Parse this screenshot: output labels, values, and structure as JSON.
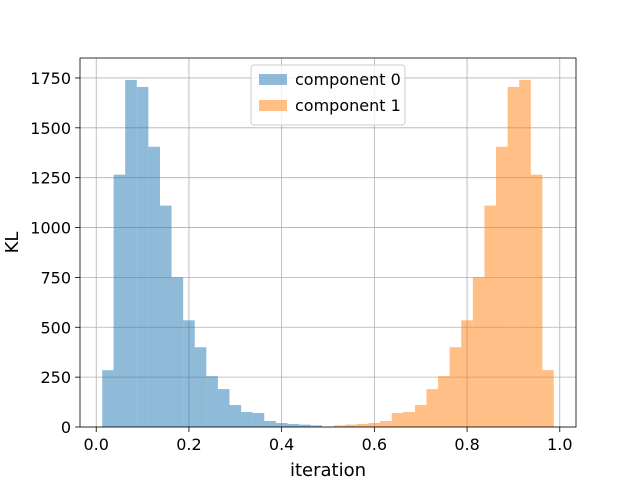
{
  "chart_data": {
    "type": "bar",
    "title": "",
    "xlabel": "iteration",
    "ylabel": "KL",
    "xlim": [
      -0.035,
      1.035
    ],
    "ylim": [
      0,
      1850
    ],
    "grid": true,
    "legend_position": "top-center",
    "x_ticks": [
      0.0,
      0.2,
      0.4,
      0.6,
      0.8,
      1.0
    ],
    "x_tick_labels": [
      "0.0",
      "0.2",
      "0.4",
      "0.6",
      "0.8",
      "1.0"
    ],
    "y_ticks": [
      0,
      250,
      500,
      750,
      1000,
      1250,
      1500,
      1750
    ],
    "y_tick_labels": [
      "0",
      "250",
      "500",
      "750",
      "1000",
      "1250",
      "1500",
      "1750"
    ],
    "series": [
      {
        "name": "component 0",
        "color": "#1f77b4",
        "opacity": 0.5,
        "bins": [
          [
            0.013,
            0.0375,
            285
          ],
          [
            0.0375,
            0.0625,
            1265
          ],
          [
            0.0625,
            0.0875,
            1740
          ],
          [
            0.0875,
            0.1125,
            1705
          ],
          [
            0.1125,
            0.1375,
            1405
          ],
          [
            0.1375,
            0.1625,
            1110
          ],
          [
            0.1625,
            0.1875,
            750
          ],
          [
            0.1875,
            0.2125,
            535
          ],
          [
            0.2125,
            0.2375,
            400
          ],
          [
            0.2375,
            0.2625,
            255
          ],
          [
            0.2625,
            0.2875,
            190
          ],
          [
            0.2875,
            0.3125,
            110
          ],
          [
            0.3125,
            0.3375,
            75
          ],
          [
            0.3375,
            0.3625,
            70
          ],
          [
            0.3625,
            0.3875,
            30
          ],
          [
            0.3875,
            0.4125,
            20
          ],
          [
            0.4125,
            0.4375,
            15
          ],
          [
            0.4375,
            0.4625,
            12
          ],
          [
            0.4625,
            0.487,
            8
          ]
        ]
      },
      {
        "name": "component 1",
        "color": "#ff7f0e",
        "opacity": 0.5,
        "bins": [
          [
            0.513,
            0.5375,
            8
          ],
          [
            0.5375,
            0.5625,
            12
          ],
          [
            0.5625,
            0.5875,
            15
          ],
          [
            0.5875,
            0.6125,
            20
          ],
          [
            0.6125,
            0.6375,
            30
          ],
          [
            0.6375,
            0.6625,
            70
          ],
          [
            0.6625,
            0.6875,
            75
          ],
          [
            0.6875,
            0.7125,
            110
          ],
          [
            0.7125,
            0.7375,
            190
          ],
          [
            0.7375,
            0.7625,
            255
          ],
          [
            0.7625,
            0.7875,
            400
          ],
          [
            0.7875,
            0.8125,
            535
          ],
          [
            0.8125,
            0.8375,
            750
          ],
          [
            0.8375,
            0.8625,
            1110
          ],
          [
            0.8625,
            0.8875,
            1405
          ],
          [
            0.8875,
            0.9125,
            1705
          ],
          [
            0.9125,
            0.9375,
            1740
          ],
          [
            0.9375,
            0.9625,
            1265
          ],
          [
            0.9625,
            0.987,
            285
          ]
        ]
      }
    ]
  }
}
